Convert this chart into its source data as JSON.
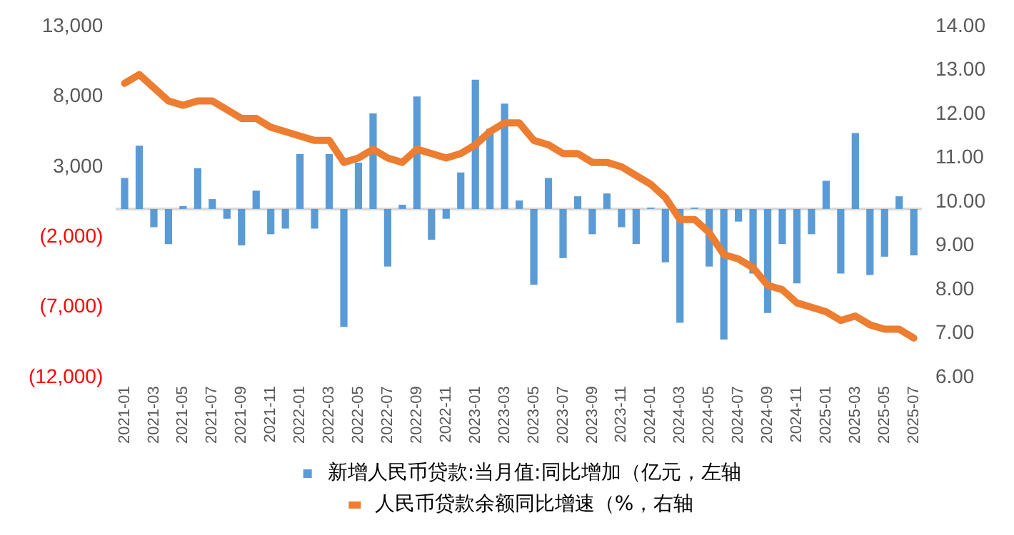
{
  "chart_data": {
    "type": "bar",
    "categories": [
      "2021-01",
      null,
      "2021-03",
      null,
      "2021-05",
      null,
      "2021-07",
      null,
      "2021-09",
      null,
      "2021-11",
      null,
      "2022-01",
      null,
      "2022-03",
      null,
      "2022-05",
      null,
      "2022-07",
      null,
      "2022-09",
      null,
      "2022-11",
      null,
      "2023-01",
      null,
      "2023-03",
      null,
      "2023-05",
      null,
      "2023-07",
      null,
      "2023-09",
      null,
      "2023-11",
      null,
      "2024-01",
      null,
      "2024-03",
      null,
      "2024-05",
      null,
      "2024-07",
      null,
      "2024-09",
      null,
      "2024-11",
      null,
      "2025-01",
      null,
      "2025-03",
      null,
      "2025-05",
      null,
      "2025-07"
    ],
    "series": [
      {
        "name": "新增人民币贷款:当月值:同比增加（亿元，左轴",
        "color": "#5b9bd5",
        "values": [
          2200,
          4500,
          -1300,
          -2500,
          200,
          2900,
          700,
          -700,
          -2600,
          1300,
          -1800,
          -1400,
          3900,
          -1400,
          3900,
          -8400,
          3300,
          6800,
          -4100,
          300,
          8000,
          -2200,
          -700,
          2600,
          9200,
          5700,
          7500,
          600,
          -5400,
          2200,
          -3500,
          900,
          -1800,
          1100,
          -1300,
          -2500,
          100,
          -3800,
          -8100,
          100,
          -4100,
          -9300,
          -900,
          -4600,
          -7400,
          -2500,
          -5300,
          -1800,
          2000,
          -4600,
          5400,
          -4700,
          -3400,
          900,
          -3300
        ]
      },
      {
        "name": "人民币贷款余额同比增速（%，右轴",
        "type": "line",
        "axis": "y2",
        "color": "#ed7d31",
        "values": [
          12.7,
          12.9,
          12.6,
          12.3,
          12.2,
          12.3,
          12.3,
          12.1,
          11.9,
          11.9,
          11.7,
          11.6,
          11.5,
          11.4,
          11.4,
          10.9,
          11.0,
          11.2,
          11.0,
          10.9,
          11.2,
          11.1,
          11.0,
          11.1,
          11.3,
          11.6,
          11.8,
          11.8,
          11.4,
          11.3,
          11.1,
          11.1,
          10.9,
          10.9,
          10.8,
          10.6,
          10.4,
          10.1,
          9.6,
          9.6,
          9.3,
          8.8,
          8.7,
          8.5,
          8.1,
          8.0,
          7.7,
          7.6,
          7.5,
          7.3,
          7.4,
          7.2,
          7.1,
          7.1,
          6.9
        ]
      }
    ],
    "ylim": [
      -12000,
      13000
    ],
    "yticks": [
      {
        "value": -12000,
        "label": "(12,000)"
      },
      {
        "value": -7000,
        "label": "(7,000)"
      },
      {
        "value": -2000,
        "label": "(2,000)"
      },
      {
        "value": 3000,
        "label": "3,000"
      },
      {
        "value": 8000,
        "label": "8,000"
      },
      {
        "value": 13000,
        "label": "13,000"
      }
    ],
    "y2lim": [
      6,
      14
    ],
    "y2ticks": [
      {
        "value": 6,
        "label": "6.00"
      },
      {
        "value": 7,
        "label": "7.00"
      },
      {
        "value": 8,
        "label": "8.00"
      },
      {
        "value": 9,
        "label": "9.00"
      },
      {
        "value": 10,
        "label": "10.00"
      },
      {
        "value": 11,
        "label": "11.00"
      },
      {
        "value": 12,
        "label": "12.00"
      },
      {
        "value": 13,
        "label": "13.00"
      },
      {
        "value": 14,
        "label": "14.00"
      }
    ],
    "grid": false,
    "legend": "bottom",
    "marker": "none"
  }
}
